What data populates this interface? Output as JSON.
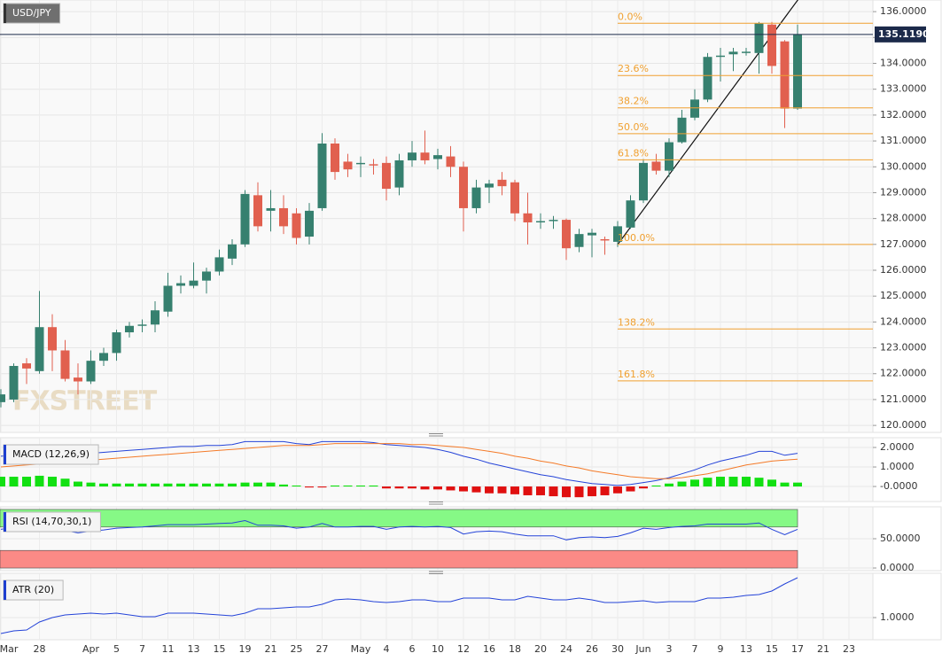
{
  "chart_data": [
    {
      "type": "candlestick",
      "title": "USD/JPY",
      "watermark": "FXSTREET",
      "categories": [
        "Mar",
        null,
        null,
        "28",
        null,
        null,
        null,
        "Apr",
        null,
        "5",
        null,
        "7",
        null,
        "11",
        null,
        "13",
        null,
        "15",
        null,
        "19",
        null,
        "21",
        null,
        "25",
        null,
        "27",
        null,
        null,
        "May",
        null,
        "4",
        null,
        "6",
        null,
        "10",
        null,
        "12",
        null,
        "16",
        null,
        "18",
        null,
        "20",
        null,
        "24",
        null,
        "26",
        null,
        "30",
        null,
        "Jun",
        null,
        "3",
        null,
        "7",
        null,
        "9",
        null,
        "13",
        null,
        "15",
        null,
        "17",
        null,
        "21",
        null,
        "23"
      ],
      "open": [
        120.9,
        121.0,
        122.4,
        122.1,
        123.8,
        122.9,
        121.85,
        121.7,
        122.5,
        122.8,
        123.6,
        123.85,
        123.9,
        124.4,
        125.4,
        125.4,
        125.6,
        125.95,
        126.45,
        127.0,
        128.9,
        128.3,
        128.4,
        128.2,
        127.3,
        128.4,
        130.9,
        130.2,
        130.1,
        130.1,
        130.15,
        129.2,
        130.25,
        130.55,
        130.3,
        130.4,
        130.0,
        128.4,
        129.2,
        129.5,
        129.4,
        128.2,
        127.85,
        127.9,
        127.95,
        126.9,
        127.35,
        127.2,
        127.1,
        127.65,
        128.7,
        130.2,
        129.85,
        130.95,
        131.9,
        132.6,
        134.25,
        134.35,
        134.4,
        134.4,
        135.5,
        134.85,
        132.25,
        null,
        null,
        null,
        null
      ],
      "high": [
        121.4,
        122.4,
        122.6,
        125.2,
        124.3,
        123.3,
        122.4,
        122.9,
        123.0,
        123.7,
        124.0,
        124.1,
        124.8,
        125.9,
        125.8,
        126.3,
        126.1,
        126.8,
        127.2,
        129.1,
        129.4,
        129.1,
        128.9,
        128.4,
        128.6,
        131.3,
        131.1,
        130.5,
        130.4,
        130.3,
        130.4,
        130.5,
        131.0,
        131.4,
        130.7,
        130.8,
        130.2,
        129.5,
        129.5,
        129.8,
        129.5,
        129.0,
        128.2,
        128.1,
        128.0,
        127.6,
        127.6,
        127.3,
        127.9,
        128.9,
        130.3,
        130.5,
        131.1,
        132.2,
        133.0,
        134.4,
        134.6,
        134.6,
        134.6,
        135.6,
        135.6,
        134.9,
        135.5,
        null,
        null,
        null,
        null
      ],
      "low": [
        120.7,
        120.9,
        121.6,
        122.0,
        122.1,
        121.7,
        121.2,
        121.6,
        122.3,
        122.5,
        123.4,
        123.6,
        123.6,
        124.2,
        125.1,
        125.3,
        125.1,
        125.8,
        126.2,
        126.9,
        127.5,
        127.5,
        127.4,
        127.0,
        127.0,
        128.3,
        129.5,
        129.6,
        129.6,
        129.7,
        128.7,
        128.9,
        130.0,
        130.1,
        129.9,
        129.6,
        127.5,
        128.2,
        128.6,
        128.9,
        127.9,
        127.0,
        127.6,
        127.6,
        126.4,
        126.7,
        126.5,
        126.6,
        126.9,
        127.6,
        128.6,
        129.7,
        129.6,
        130.9,
        131.8,
        132.5,
        133.3,
        133.7,
        134.3,
        133.6,
        133.6,
        131.5,
        132.2,
        null,
        null,
        null,
        null
      ],
      "close": [
        121.2,
        122.3,
        122.2,
        123.8,
        122.9,
        121.8,
        121.7,
        122.5,
        122.8,
        123.6,
        123.85,
        123.9,
        124.45,
        125.4,
        125.5,
        125.6,
        125.95,
        126.5,
        127.0,
        128.95,
        127.7,
        128.4,
        127.7,
        127.25,
        128.3,
        130.9,
        129.8,
        129.9,
        130.15,
        130.05,
        129.15,
        130.25,
        130.55,
        130.25,
        130.45,
        130.0,
        128.4,
        129.2,
        129.35,
        129.25,
        128.2,
        127.85,
        127.9,
        127.95,
        126.85,
        127.4,
        127.45,
        127.15,
        127.7,
        128.7,
        130.15,
        129.85,
        130.95,
        131.9,
        132.6,
        134.25,
        134.3,
        134.45,
        134.45,
        135.55,
        133.9,
        132.25,
        135.119,
        null,
        null,
        null,
        null
      ],
      "up_color": "#36806f",
      "down_color": "#e1604f",
      "ylim": [
        119.73,
        136.45
      ],
      "yticks": [
        {
          "value": 120,
          "label": "120.0000"
        },
        {
          "value": 121,
          "label": "121.0000"
        },
        {
          "value": 122,
          "label": "122.0000"
        },
        {
          "value": 123,
          "label": "123.0000"
        },
        {
          "value": 124,
          "label": "124.0000"
        },
        {
          "value": 125,
          "label": "125.0000"
        },
        {
          "value": 126,
          "label": "126.0000"
        },
        {
          "value": 127,
          "label": "127.0000"
        },
        {
          "value": 128,
          "label": "128.0000"
        },
        {
          "value": 129,
          "label": "129.0000"
        },
        {
          "value": 130,
          "label": "130.0000"
        },
        {
          "value": 131,
          "label": "131.0000"
        },
        {
          "value": 132,
          "label": "132.0000"
        },
        {
          "value": 133,
          "label": "133.0000"
        },
        {
          "value": 134,
          "label": "134.0000"
        },
        {
          "value": 135,
          "label": "135.0000"
        },
        {
          "value": 136,
          "label": "136.0000"
        }
      ],
      "grid": true,
      "last_price": {
        "value": 135.119,
        "label": "135.1190"
      },
      "fibonacci": [
        {
          "label": "0.0%",
          "value": 135.55
        },
        {
          "label": "23.6%",
          "value": 133.53
        },
        {
          "label": "38.2%",
          "value": 132.28
        },
        {
          "label": "50.0%",
          "value": 131.28
        },
        {
          "label": "61.8%",
          "value": 130.27
        },
        {
          "label": "100.0%",
          "value": 127.0
        },
        {
          "label": "138.2%",
          "value": 123.73
        },
        {
          "label": "161.8%",
          "value": 121.72
        }
      ],
      "fib_color": "#f0a030"
    },
    {
      "type": "macd",
      "title": "MACD (12,26,9)",
      "series": [
        {
          "color": "#2443d8",
          "values": [
            1.55,
            1.6,
            1.65,
            1.75,
            1.8,
            1.75,
            1.7,
            1.7,
            1.75,
            1.8,
            1.85,
            1.9,
            1.95,
            2.0,
            2.05,
            2.05,
            2.1,
            2.1,
            2.15,
            2.3,
            2.3,
            2.3,
            2.3,
            2.2,
            2.15,
            2.3,
            2.3,
            2.3,
            2.3,
            2.25,
            2.15,
            2.1,
            2.05,
            2.0,
            1.9,
            1.75,
            1.55,
            1.4,
            1.2,
            1.05,
            0.9,
            0.75,
            0.6,
            0.5,
            0.35,
            0.25,
            0.15,
            0.1,
            0.05,
            0.1,
            0.2,
            0.3,
            0.45,
            0.65,
            0.85,
            1.1,
            1.3,
            1.45,
            1.6,
            1.8,
            1.8,
            1.6,
            1.7,
            null,
            null,
            null,
            null
          ]
        },
        {
          "color": "#f47a28",
          "values": [
            1.0,
            1.05,
            1.1,
            1.15,
            1.2,
            1.25,
            1.3,
            1.35,
            1.4,
            1.45,
            1.5,
            1.55,
            1.6,
            1.65,
            1.7,
            1.75,
            1.8,
            1.85,
            1.9,
            1.95,
            2.0,
            2.05,
            2.1,
            2.1,
            2.1,
            2.15,
            2.2,
            2.2,
            2.2,
            2.2,
            2.2,
            2.2,
            2.15,
            2.15,
            2.1,
            2.05,
            2.0,
            1.9,
            1.8,
            1.7,
            1.55,
            1.45,
            1.3,
            1.2,
            1.05,
            0.95,
            0.8,
            0.7,
            0.6,
            0.5,
            0.45,
            0.4,
            0.4,
            0.45,
            0.55,
            0.65,
            0.8,
            0.95,
            1.1,
            1.2,
            1.3,
            1.35,
            1.4,
            null,
            null,
            null,
            null
          ]
        }
      ],
      "histogram": {
        "up_color": "#12e012",
        "down_color": "#e01010",
        "values": [
          0.5,
          0.5,
          0.5,
          0.55,
          0.5,
          0.4,
          0.25,
          0.2,
          0.15,
          0.15,
          0.15,
          0.15,
          0.15,
          0.15,
          0.15,
          0.15,
          0.15,
          0.15,
          0.15,
          0.2,
          0.2,
          0.2,
          0.1,
          0.05,
          -0.05,
          -0.05,
          0.05,
          0.05,
          0.05,
          0.05,
          -0.1,
          -0.1,
          -0.1,
          -0.15,
          -0.15,
          -0.2,
          -0.25,
          -0.3,
          -0.35,
          -0.35,
          -0.4,
          -0.45,
          -0.45,
          -0.5,
          -0.55,
          -0.55,
          -0.5,
          -0.45,
          -0.35,
          -0.25,
          -0.1,
          0.05,
          0.15,
          0.25,
          0.35,
          0.45,
          0.5,
          0.5,
          0.5,
          0.45,
          0.35,
          0.2,
          0.2,
          null,
          null,
          null,
          null
        ]
      },
      "ylim": [
        -0.77,
        2.5
      ],
      "yticks": [
        {
          "value": 2,
          "label": "2.0000"
        },
        {
          "value": 1,
          "label": "1.0000"
        },
        {
          "value": 0,
          "label": "-0.0000"
        }
      ]
    },
    {
      "type": "rsi",
      "title": "RSI (14,70,30,1)",
      "color": "#2443d8",
      "values": [
        66,
        69,
        69,
        72,
        70,
        64,
        60,
        63,
        65,
        68,
        69,
        70,
        72,
        74,
        74,
        74,
        75,
        76,
        77,
        81,
        73,
        73,
        72,
        68,
        70,
        76,
        70,
        70,
        71,
        71,
        66,
        70,
        71,
        70,
        71,
        69,
        58,
        62,
        63,
        62,
        58,
        55,
        55,
        55,
        48,
        52,
        53,
        52,
        54,
        60,
        68,
        66,
        69,
        71,
        72,
        75,
        75,
        75,
        75,
        77,
        66,
        57,
        66,
        null,
        null,
        null,
        null
      ],
      "bands": [
        {
          "from": 70,
          "to": 100,
          "color": "#86f986"
        },
        {
          "from": 0,
          "to": 30,
          "color": "#fb8a86"
        }
      ],
      "ylim": [
        -4.5,
        104.5
      ],
      "yticks": [
        {
          "value": 50,
          "label": "50.0000"
        },
        {
          "value": 0,
          "label": "0.0000"
        }
      ]
    },
    {
      "type": "atr",
      "title": "ATR (20)",
      "color": "#2443d8",
      "values": [
        0.82,
        0.85,
        0.86,
        0.95,
        1.0,
        1.03,
        1.04,
        1.05,
        1.04,
        1.05,
        1.03,
        1.01,
        1.01,
        1.05,
        1.05,
        1.05,
        1.04,
        1.03,
        1.02,
        1.05,
        1.1,
        1.1,
        1.11,
        1.12,
        1.12,
        1.15,
        1.2,
        1.21,
        1.2,
        1.18,
        1.17,
        1.18,
        1.2,
        1.2,
        1.18,
        1.18,
        1.22,
        1.22,
        1.22,
        1.2,
        1.2,
        1.24,
        1.22,
        1.2,
        1.2,
        1.22,
        1.2,
        1.17,
        1.17,
        1.18,
        1.19,
        1.17,
        1.18,
        1.18,
        1.18,
        1.22,
        1.22,
        1.23,
        1.25,
        1.26,
        1.3,
        1.38,
        1.45,
        null,
        null,
        null,
        null
      ],
      "ylim": [
        0.75,
        1.5
      ],
      "yticks": [
        {
          "value": 1,
          "label": "1.0000"
        }
      ]
    }
  ]
}
